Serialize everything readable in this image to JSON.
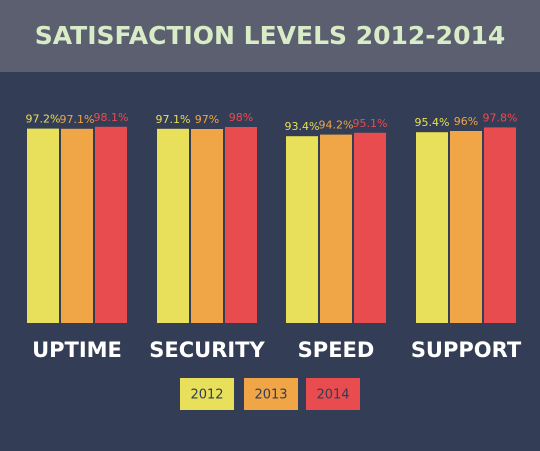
{
  "chart_data": {
    "type": "bar",
    "title": "SATISFACTION LEVELS 2012-2014",
    "categories": [
      "UPTIME",
      "SECURITY",
      "SPEED",
      "SUPPORT"
    ],
    "series": [
      {
        "name": "2012",
        "color": "#e8df5a",
        "values": [
          97.2,
          97.1,
          93.4,
          95.4
        ],
        "value_labels": [
          "97.2%",
          "97.1%",
          "93.4%",
          "95.4%"
        ]
      },
      {
        "name": "2013",
        "color": "#f0a546",
        "values": [
          97.1,
          97,
          94.2,
          96
        ],
        "value_labels": [
          "97.1%",
          "97%",
          "94.2%",
          "96%"
        ]
      },
      {
        "name": "2014",
        "color": "#e84c4f",
        "values": [
          98.1,
          98,
          95.1,
          97.8
        ],
        "value_labels": [
          "98.1%",
          "98%",
          "95.1%",
          "97.8%"
        ]
      }
    ],
    "ylim": [
      0,
      100
    ]
  }
}
